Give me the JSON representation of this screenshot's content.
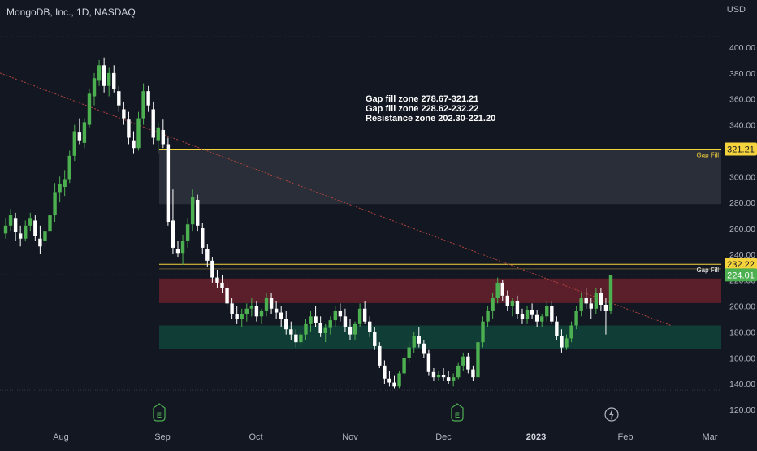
{
  "header": {
    "title": "MongoDB, Inc., 1D, NASDAQ"
  },
  "currency": "USD",
  "annotations": [
    "Gap fill zone 278.67-321.21",
    "Gap fill zone 228.62-232.22",
    "Resistance zone 202.30-221.20"
  ],
  "zone_labels": [
    "Gap Fill",
    "Gap Fill"
  ],
  "price_tags": {
    "upper_gap": "321.21",
    "lower_gap": "232.22",
    "last": "224.01"
  },
  "event_icons": [
    "E",
    "E",
    "lightning"
  ],
  "colors": {
    "background": "#131722",
    "up": "#4caf50",
    "down": "#ffffff",
    "gap_line": "#f5d33c",
    "resistance": "#5b1f2b",
    "support": "#103d36",
    "gap_zone": "#2a2e39",
    "trendline": "#b2453d",
    "last_tag": "#4caf50",
    "gap_tag": "#f5d33c"
  },
  "chart_data": {
    "type": "candlestick",
    "y_axis": {
      "ticks": [
        120,
        140,
        160,
        180,
        200,
        220,
        240,
        260,
        280,
        300,
        320,
        340,
        360,
        380,
        400
      ],
      "range": [
        112,
        420
      ]
    },
    "x_axis": {
      "ticks": [
        "Aug",
        "Sep",
        "Oct",
        "Nov",
        "Dec",
        "2023",
        "Feb",
        "Mar"
      ]
    },
    "zones": [
      {
        "label": "Gap fill zone",
        "low": 278.67,
        "high": 321.21
      },
      {
        "label": "Gap fill zone",
        "low": 228.62,
        "high": 232.22
      },
      {
        "label": "Resistance zone",
        "low": 202.3,
        "high": 221.2
      },
      {
        "label": "Support zone",
        "low": 167,
        "high": 185
      }
    ],
    "trendline": {
      "start": 380,
      "end": 185
    },
    "candles": [
      [
        256,
        268,
        252,
        262
      ],
      [
        262,
        275,
        258,
        270
      ],
      [
        268,
        272,
        250,
        257
      ],
      [
        256,
        262,
        246,
        252
      ],
      [
        252,
        266,
        250,
        262
      ],
      [
        262,
        272,
        258,
        268
      ],
      [
        266,
        270,
        250,
        254
      ],
      [
        252,
        262,
        240,
        246
      ],
      [
        250,
        262,
        244,
        258
      ],
      [
        258,
        275,
        252,
        270
      ],
      [
        270,
        295,
        265,
        288
      ],
      [
        288,
        300,
        280,
        294
      ],
      [
        292,
        305,
        285,
        298
      ],
      [
        298,
        320,
        295,
        316
      ],
      [
        316,
        340,
        312,
        335
      ],
      [
        334,
        345,
        325,
        328
      ],
      [
        326,
        345,
        322,
        342
      ],
      [
        340,
        368,
        338,
        364
      ],
      [
        362,
        380,
        355,
        376
      ],
      [
        374,
        390,
        370,
        386
      ],
      [
        386,
        392,
        365,
        370
      ],
      [
        370,
        384,
        362,
        380
      ],
      [
        380,
        386,
        365,
        368
      ],
      [
        366,
        370,
        350,
        355
      ],
      [
        352,
        358,
        340,
        345
      ],
      [
        344,
        350,
        325,
        330
      ],
      [
        328,
        335,
        318,
        322
      ],
      [
        322,
        350,
        320,
        345
      ],
      [
        345,
        372,
        340,
        366
      ],
      [
        366,
        370,
        350,
        355
      ],
      [
        352,
        358,
        325,
        330
      ],
      [
        328,
        342,
        318,
        338
      ],
      [
        336,
        344,
        322,
        325
      ],
      [
        325,
        330,
        262,
        265
      ],
      [
        266,
        290,
        240,
        245
      ],
      [
        244,
        250,
        238,
        241
      ],
      [
        241,
        255,
        232,
        250
      ],
      [
        250,
        268,
        245,
        263
      ],
      [
        263,
        290,
        258,
        284
      ],
      [
        282,
        286,
        258,
        262
      ],
      [
        260,
        264,
        240,
        245
      ],
      [
        244,
        248,
        230,
        235
      ],
      [
        235,
        238,
        218,
        222
      ],
      [
        222,
        228,
        214,
        218
      ],
      [
        218,
        224,
        210,
        214
      ],
      [
        214,
        218,
        198,
        202
      ],
      [
        202,
        206,
        190,
        194
      ],
      [
        194,
        200,
        186,
        190
      ],
      [
        190,
        198,
        184,
        194
      ],
      [
        194,
        202,
        188,
        198
      ],
      [
        198,
        206,
        192,
        200
      ],
      [
        200,
        204,
        188,
        192
      ],
      [
        192,
        198,
        186,
        196
      ],
      [
        196,
        210,
        192,
        206
      ],
      [
        206,
        210,
        194,
        198
      ],
      [
        198,
        204,
        190,
        195
      ],
      [
        195,
        200,
        184,
        190
      ],
      [
        190,
        196,
        178,
        182
      ],
      [
        182,
        188,
        174,
        178
      ],
      [
        178,
        182,
        168,
        172
      ],
      [
        172,
        180,
        168,
        178
      ],
      [
        178,
        190,
        174,
        186
      ],
      [
        186,
        196,
        180,
        192
      ],
      [
        192,
        200,
        184,
        187
      ],
      [
        187,
        192,
        176,
        179
      ],
      [
        179,
        186,
        172,
        183
      ],
      [
        183,
        192,
        178,
        189
      ],
      [
        189,
        200,
        184,
        196
      ],
      [
        196,
        202,
        188,
        192
      ],
      [
        192,
        198,
        180,
        184
      ],
      [
        184,
        190,
        174,
        178
      ],
      [
        178,
        188,
        174,
        186
      ],
      [
        186,
        202,
        184,
        198
      ],
      [
        198,
        204,
        186,
        188
      ],
      [
        188,
        192,
        176,
        180
      ],
      [
        180,
        184,
        166,
        169
      ],
      [
        169,
        172,
        152,
        154
      ],
      [
        154,
        158,
        140,
        144
      ],
      [
        144,
        150,
        138,
        141
      ],
      [
        141,
        146,
        136,
        138
      ],
      [
        138,
        150,
        136,
        148
      ],
      [
        148,
        162,
        146,
        160
      ],
      [
        160,
        172,
        156,
        168
      ],
      [
        168,
        180,
        164,
        177
      ],
      [
        177,
        184,
        168,
        171
      ],
      [
        171,
        174,
        160,
        163
      ],
      [
        163,
        166,
        146,
        149
      ],
      [
        149,
        152,
        142,
        145
      ],
      [
        145,
        150,
        142,
        147
      ],
      [
        147,
        152,
        142,
        145
      ],
      [
        145,
        150,
        140,
        142
      ],
      [
        142,
        148,
        138,
        145
      ],
      [
        145,
        156,
        143,
        154
      ],
      [
        154,
        164,
        150,
        161
      ],
      [
        161,
        164,
        148,
        151
      ],
      [
        151,
        154,
        142,
        145
      ],
      [
        145,
        176,
        145,
        172
      ],
      [
        172,
        192,
        168,
        188
      ],
      [
        188,
        200,
        184,
        196
      ],
      [
        196,
        210,
        190,
        206
      ],
      [
        206,
        222,
        202,
        218
      ],
      [
        218,
        220,
        204,
        208
      ],
      [
        208,
        212,
        196,
        200
      ],
      [
        200,
        206,
        192,
        204
      ],
      [
        204,
        208,
        190,
        194
      ],
      [
        194,
        198,
        186,
        190
      ],
      [
        190,
        200,
        186,
        197
      ],
      [
        197,
        202,
        190,
        193
      ],
      [
        193,
        197,
        184,
        188
      ],
      [
        188,
        194,
        184,
        192
      ],
      [
        192,
        204,
        188,
        200
      ],
      [
        200,
        204,
        186,
        188
      ],
      [
        188,
        192,
        174,
        177
      ],
      [
        177,
        182,
        164,
        168
      ],
      [
        168,
        178,
        166,
        175
      ],
      [
        175,
        188,
        172,
        185
      ],
      [
        185,
        200,
        182,
        196
      ],
      [
        196,
        210,
        192,
        206
      ],
      [
        206,
        214,
        198,
        202
      ],
      [
        202,
        206,
        190,
        198
      ],
      [
        198,
        214,
        194,
        210
      ],
      [
        210,
        214,
        196,
        201
      ],
      [
        201,
        206,
        178,
        196
      ],
      [
        196,
        224,
        194,
        224
      ]
    ]
  }
}
